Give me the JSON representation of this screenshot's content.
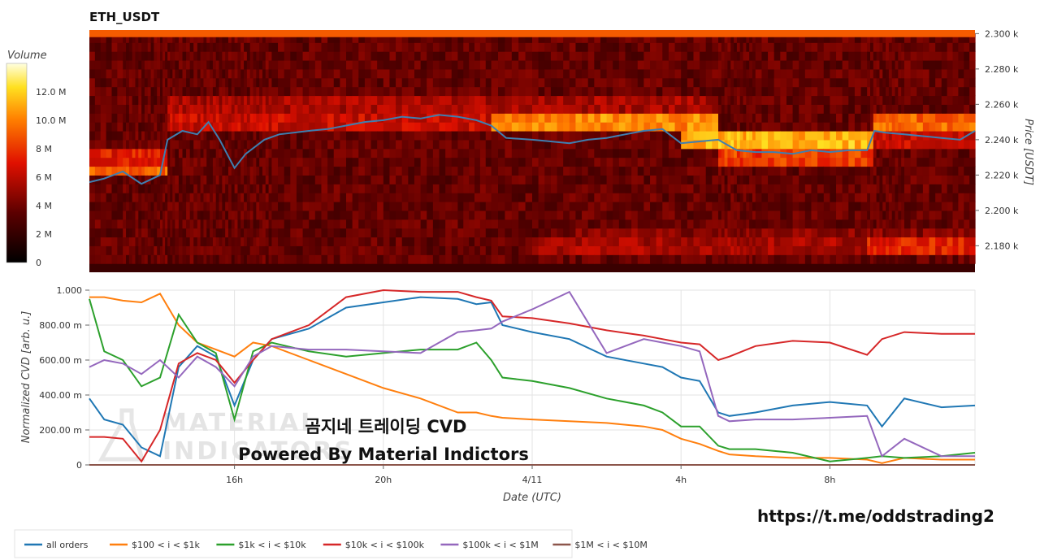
{
  "pair": "ETH_USDT",
  "colorbar": {
    "title": "Volume",
    "ticks": [
      "0",
      "2 M",
      "4 M",
      "6 M",
      "8 M",
      "10.0 M",
      "12.0 M"
    ],
    "tick_values": [
      0,
      2,
      4,
      6,
      8,
      10,
      12
    ],
    "max": 14
  },
  "heatmap_axis": {
    "ylabel": "Price [USDT]",
    "ticks": [
      "2.180 k",
      "2.200 k",
      "2.220 k",
      "2.240 k",
      "2.260 k",
      "2.280 k",
      "2.300 k"
    ],
    "tick_values": [
      2180,
      2200,
      2220,
      2240,
      2260,
      2280,
      2300
    ],
    "ylim": [
      2165,
      2302
    ]
  },
  "cvd_axis": {
    "ylabel": "Normalized CVD [arb. u.]",
    "ticks": [
      "0",
      "200.00 m",
      "400.00 m",
      "600.00 m",
      "800.00 m",
      "1.000"
    ],
    "tick_values": [
      0,
      200,
      400,
      600,
      800,
      1000
    ],
    "ylim": [
      0,
      1000
    ]
  },
  "x_axis": {
    "xlabel": "Date (UTC)",
    "ticks": [
      "16h",
      "20h",
      "4/11",
      "4h",
      "8h"
    ],
    "tick_values": [
      16,
      20,
      24,
      28,
      32
    ],
    "xlim": [
      12.1,
      35.9
    ]
  },
  "overlay": {
    "line1": "곰지네 트레이딩 CVD",
    "line2": "Powered By Material Indictors"
  },
  "watermark": {
    "line1": "MATERIAL",
    "line2": "INDICATORS"
  },
  "link": "https://t.me/oddstrading2",
  "chart_data": [
    {
      "type": "heatmap",
      "name": "orderbook-liquidity",
      "x": [
        12.1,
        13,
        13.5,
        14,
        14.4,
        15,
        15.5,
        16,
        16.5,
        17,
        18,
        19,
        20,
        21,
        22,
        22.9,
        24,
        25,
        26,
        27,
        28,
        29,
        29.5,
        30,
        31,
        32,
        33,
        33.5,
        34,
        35,
        35.9
      ],
      "price_bins": [
        2170,
        2175,
        2180,
        2185,
        2190,
        2195,
        2200,
        2205,
        2210,
        2215,
        2220,
        2225,
        2230,
        2235,
        2240,
        2245,
        2250,
        2255,
        2260,
        2265,
        2270,
        2275,
        2280,
        2285,
        2290,
        2295,
        2300
      ],
      "bands": [
        {
          "from": 2298,
          "to": 2302,
          "x0": 12.1,
          "x1": 35.9,
          "level": 9
        },
        {
          "from": 2226,
          "to": 2234,
          "x0": 12.1,
          "x1": 14.2,
          "level": 7
        },
        {
          "from": 2221,
          "to": 2226,
          "x0": 12.1,
          "x1": 14.2,
          "level": 9
        },
        {
          "from": 2244,
          "to": 2254,
          "x0": 14.2,
          "x1": 22.9,
          "level": 6
        },
        {
          "from": 2254,
          "to": 2264,
          "x0": 14.2,
          "x1": 22.9,
          "level": 5
        },
        {
          "from": 2244,
          "to": 2254,
          "x0": 22.9,
          "x1": 29.0,
          "level": 10
        },
        {
          "from": 2254,
          "to": 2264,
          "x0": 22.9,
          "x1": 29.0,
          "level": 5
        },
        {
          "from": 2234,
          "to": 2244,
          "x0": 28.0,
          "x1": 33.2,
          "level": 11
        },
        {
          "from": 2226,
          "to": 2234,
          "x0": 29.0,
          "x1": 33.2,
          "level": 8
        },
        {
          "from": 2244,
          "to": 2254,
          "x0": 33.2,
          "x1": 35.9,
          "level": 9
        },
        {
          "from": 2234,
          "to": 2244,
          "x0": 33.2,
          "x1": 35.9,
          "level": 6
        },
        {
          "from": 2176,
          "to": 2186,
          "x0": 24.0,
          "x1": 35.9,
          "level": 5
        },
        {
          "from": 2176,
          "to": 2186,
          "x0": 33.0,
          "x1": 35.9,
          "level": 7
        },
        {
          "from": 2186,
          "to": 2190,
          "x0": 25.0,
          "x1": 35.9,
          "level": 4
        }
      ]
    },
    {
      "type": "line",
      "name": "price",
      "x": [
        12.1,
        12.5,
        13,
        13.5,
        14,
        14.2,
        14.6,
        15,
        15.3,
        15.6,
        16,
        16.3,
        16.8,
        17.2,
        18,
        18.5,
        19,
        19.5,
        20,
        20.5,
        21,
        21.5,
        22,
        22.5,
        22.9,
        23.3,
        24,
        24.5,
        25,
        25.5,
        26,
        26.5,
        27,
        27.5,
        28,
        28.5,
        29,
        29.5,
        30,
        30.5,
        31,
        31.5,
        32,
        32.5,
        33,
        33.2,
        33.5,
        34,
        34.5,
        35,
        35.5,
        35.9
      ],
      "values": [
        2216,
        2218,
        2222,
        2215,
        2220,
        2240,
        2245,
        2243,
        2250,
        2240,
        2224,
        2232,
        2240,
        2243,
        2245,
        2246,
        2248,
        2250,
        2251,
        2253,
        2252,
        2254,
        2253,
        2251,
        2248,
        2241,
        2240,
        2239,
        2238,
        2240,
        2241,
        2243,
        2245,
        2246,
        2238,
        2239,
        2240,
        2234,
        2233,
        2233,
        2232,
        2234,
        2233,
        2234,
        2234,
        2245,
        2244,
        2243,
        2242,
        2241,
        2240,
        2245
      ]
    },
    {
      "type": "line",
      "x": [
        12.1,
        12.5,
        13,
        13.5,
        14,
        14.5,
        15,
        15.5,
        16,
        16.5,
        17,
        18,
        19,
        20,
        21,
        22,
        22.5,
        22.9,
        23.2,
        24,
        25,
        26,
        27,
        27.5,
        28,
        28.5,
        29,
        29.3,
        30,
        31,
        32,
        33,
        33.4,
        34,
        35,
        35.9
      ],
      "series": [
        {
          "name": "all orders",
          "color": "#1f77b4",
          "values": [
            380,
            260,
            230,
            100,
            50,
            560,
            680,
            620,
            340,
            600,
            720,
            780,
            900,
            930,
            960,
            950,
            920,
            930,
            800,
            760,
            720,
            620,
            580,
            560,
            500,
            480,
            300,
            280,
            300,
            340,
            360,
            340,
            220,
            380,
            330,
            340
          ]
        },
        {
          "name": "$100 < i < $1k",
          "color": "#ff7f0e",
          "values": [
            960,
            960,
            940,
            930,
            980,
            800,
            700,
            660,
            620,
            700,
            680,
            600,
            520,
            440,
            380,
            300,
            300,
            280,
            270,
            260,
            250,
            240,
            220,
            200,
            150,
            120,
            80,
            60,
            50,
            40,
            40,
            30,
            10,
            40,
            30,
            30
          ]
        },
        {
          "name": "$1k < i < $10k",
          "color": "#2ca02c",
          "values": [
            950,
            650,
            600,
            450,
            500,
            860,
            700,
            640,
            260,
            650,
            700,
            650,
            620,
            640,
            660,
            660,
            700,
            600,
            500,
            480,
            440,
            380,
            340,
            300,
            220,
            220,
            110,
            90,
            90,
            70,
            20,
            40,
            50,
            40,
            50,
            70
          ]
        },
        {
          "name": "$10k < i < $100k",
          "color": "#d62728",
          "values": [
            160,
            160,
            150,
            20,
            200,
            580,
            640,
            600,
            470,
            600,
            720,
            800,
            960,
            1000,
            990,
            990,
            960,
            940,
            850,
            840,
            810,
            770,
            740,
            720,
            700,
            690,
            600,
            620,
            680,
            710,
            700,
            630,
            720,
            760,
            750,
            750
          ]
        },
        {
          "name": "$100k < i < $1M",
          "color": "#9467bd",
          "values": [
            560,
            600,
            580,
            520,
            600,
            500,
            620,
            560,
            450,
            620,
            680,
            660,
            660,
            650,
            640,
            760,
            770,
            780,
            820,
            890,
            990,
            640,
            720,
            700,
            680,
            650,
            280,
            250,
            260,
            260,
            270,
            280,
            50,
            150,
            50,
            50
          ]
        },
        {
          "name": "$1M < i < $10M",
          "color": "#8c564b",
          "values": [
            0,
            0,
            0,
            0,
            0,
            0,
            0,
            0,
            0,
            0,
            0,
            0,
            0,
            0,
            0,
            0,
            0,
            0,
            0,
            0,
            0,
            0,
            0,
            0,
            0,
            0,
            0,
            0,
            0,
            0,
            0,
            0,
            0,
            0,
            0,
            0
          ]
        }
      ]
    }
  ]
}
